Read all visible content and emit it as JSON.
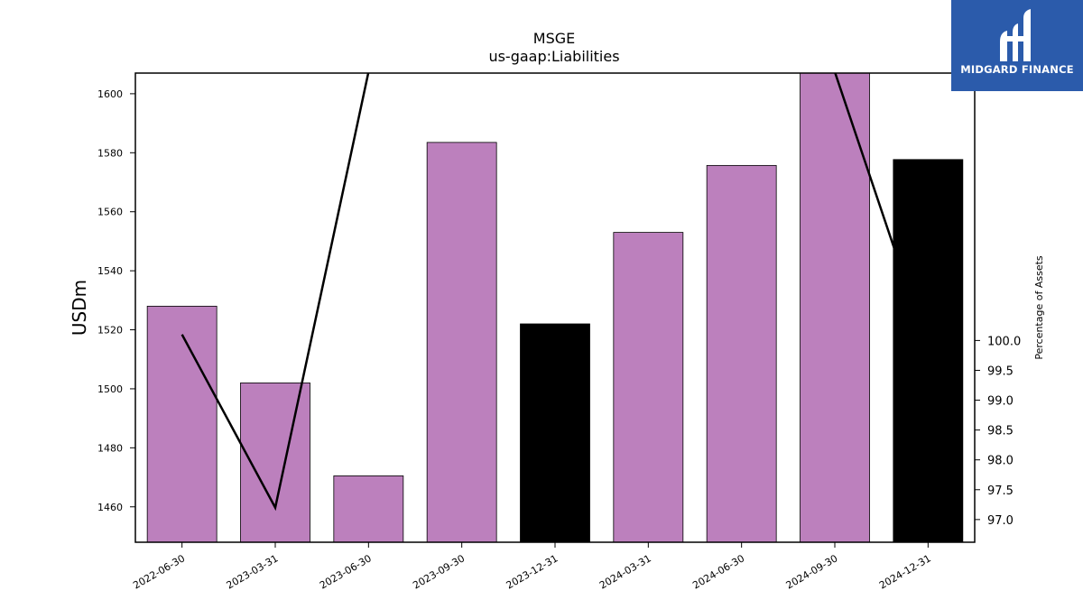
{
  "chart_data": {
    "type": "bar",
    "title": "MSGE",
    "subtitle": "us-gaap:Liabilities",
    "ylabel": "USDm",
    "y2label": "Percentage of Assets",
    "categories": [
      "2022-06-30",
      "2023-03-31",
      "2023-06-30",
      "2023-09-30",
      "2023-12-31",
      "2024-03-31",
      "2024-06-30",
      "2024-09-30",
      "2024-12-31"
    ],
    "values": [
      1528,
      1502,
      1470.5,
      1583.5,
      1522,
      1553,
      1575.7,
      1607,
      1577.7
    ],
    "bar_colors": [
      "#bc80bd",
      "#bc80bd",
      "#bc80bd",
      "#bc80bd",
      "#000000",
      "#bc80bd",
      "#bc80bd",
      "#bc80bd",
      "#000000"
    ],
    "ylim": [
      1448,
      1607
    ],
    "yticks": [
      1460,
      1480,
      1500,
      1520,
      1540,
      1560,
      1580,
      1600
    ],
    "line_series": {
      "values": [
        100.1,
        97.2,
        104.5,
        104.5,
        104.5,
        104.5,
        104.5,
        104.5,
        99.86
      ],
      "color": "#000000"
    },
    "y2lim": [
      96.62,
      104.48
    ],
    "y2ticks": [
      "97.0",
      "97.5",
      "98.0",
      "98.5",
      "99.0",
      "99.5",
      "100.0"
    ]
  },
  "logo": {
    "text": "MIDGARD FINANCE",
    "color": "#2b5bab"
  }
}
